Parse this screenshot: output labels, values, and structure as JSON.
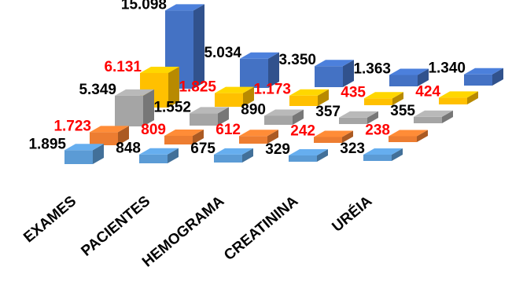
{
  "chart_data": {
    "type": "bar",
    "style": "3d-column",
    "categories": [
      "EXAMES",
      "PACIENTES",
      "HEMOGRAMA",
      "CREATININA",
      "URÉIA"
    ],
    "series": [
      {
        "values": [
          15098,
          5034,
          3350,
          1363,
          1340
        ],
        "labels": [
          "15.098",
          "5.034",
          "3.350",
          "1.363",
          "1.340"
        ],
        "color": "#4472c4",
        "label_color": "#000000"
      },
      {
        "values": [
          6131,
          1825,
          1173,
          435,
          424
        ],
        "labels": [
          "6.131",
          "1.825",
          "1.173",
          "435",
          "424"
        ],
        "color": "#ffc000",
        "label_color": "#ff0000"
      },
      {
        "values": [
          5349,
          1552,
          890,
          357,
          355
        ],
        "labels": [
          "5.349",
          "1.552",
          "890",
          "357",
          "355"
        ],
        "color": "#a5a5a5",
        "label_color": "#000000"
      },
      {
        "values": [
          1723,
          809,
          612,
          242,
          238
        ],
        "labels": [
          "1.723",
          "809",
          "612",
          "242",
          "238"
        ],
        "color": "#ed7d31",
        "label_color": "#ff0000"
      },
      {
        "values": [
          1895,
          848,
          675,
          329,
          323
        ],
        "labels": [
          "1.895",
          "848",
          "675",
          "329",
          "323"
        ],
        "color": "#5b9bd5",
        "label_color": "#000000"
      }
    ],
    "grid": false,
    "legend": "none"
  }
}
